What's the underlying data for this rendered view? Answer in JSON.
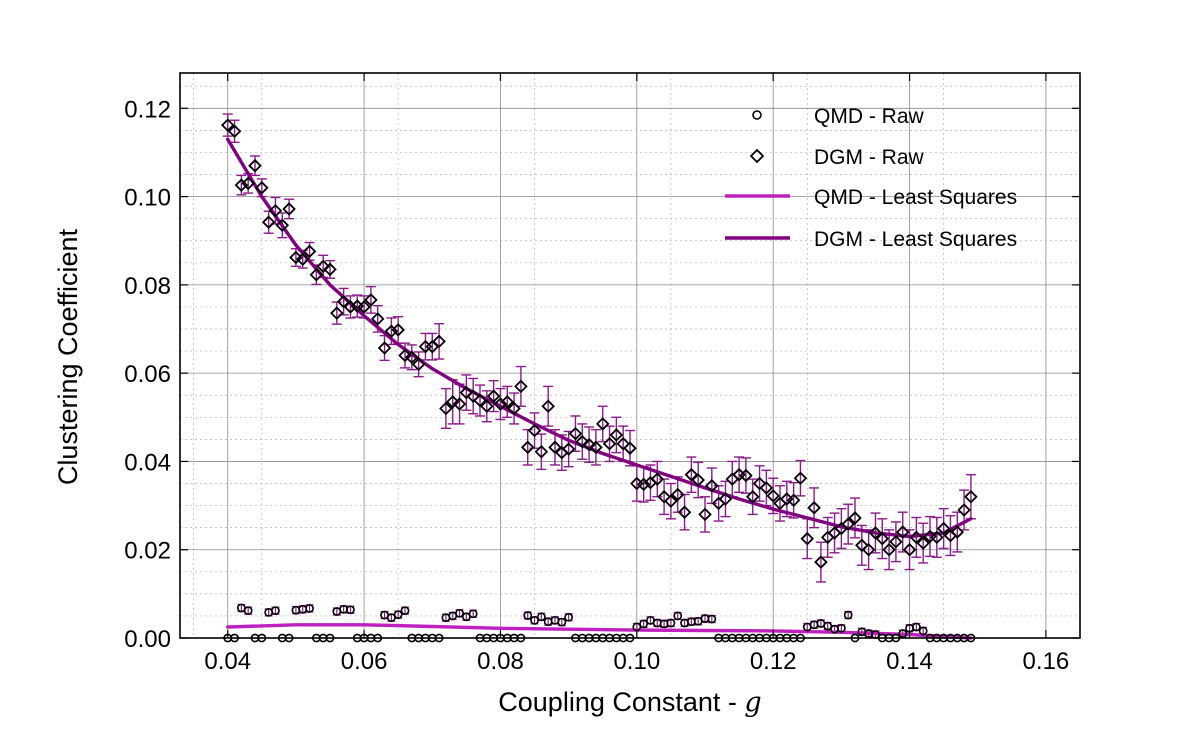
{
  "chart_data": {
    "type": "scatter",
    "title": "",
    "xlabel": "Coupling Constant - ",
    "xlabel_var": "g",
    "ylabel": "Clustering Coefficient",
    "xlim": [
      0.033,
      0.165
    ],
    "ylim": [
      0.0,
      0.128
    ],
    "xticks": [
      "0.04",
      "0.06",
      "0.08",
      "0.10",
      "0.12",
      "0.14",
      "0.16"
    ],
    "yticks": [
      "0.00",
      "0.02",
      "0.04",
      "0.06",
      "0.08",
      "0.10",
      "0.12"
    ],
    "xtick_values": [
      0.04,
      0.06,
      0.08,
      0.1,
      0.12,
      0.14,
      0.16
    ],
    "ytick_values": [
      0.0,
      0.02,
      0.04,
      0.06,
      0.08,
      0.1,
      0.12
    ],
    "grid": true,
    "legend_position": "top-right",
    "colors": {
      "qmd_fit": "#bf20bf",
      "dgm_fit": "#800080",
      "marker": "#000000",
      "errorbar": "#8b1a8b"
    },
    "series": [
      {
        "name": "QMD - Raw",
        "kind": "scatter",
        "marker": "circle",
        "points": [
          [
            0.04,
            0.0
          ],
          [
            0.041,
            0.0
          ],
          [
            0.042,
            0.0068
          ],
          [
            0.043,
            0.0062
          ],
          [
            0.044,
            0.0
          ],
          [
            0.045,
            0.0
          ],
          [
            0.046,
            0.0058
          ],
          [
            0.047,
            0.0062
          ],
          [
            0.048,
            0.0
          ],
          [
            0.049,
            0.0
          ],
          [
            0.05,
            0.0063
          ],
          [
            0.051,
            0.0065
          ],
          [
            0.052,
            0.0067
          ],
          [
            0.053,
            0.0
          ],
          [
            0.054,
            0.0
          ],
          [
            0.055,
            0.0
          ],
          [
            0.056,
            0.006
          ],
          [
            0.057,
            0.0065
          ],
          [
            0.058,
            0.0064
          ],
          [
            0.059,
            0.0
          ],
          [
            0.06,
            0.0
          ],
          [
            0.061,
            0.0
          ],
          [
            0.062,
            0.0
          ],
          [
            0.063,
            0.0052
          ],
          [
            0.064,
            0.0046
          ],
          [
            0.065,
            0.0053
          ],
          [
            0.066,
            0.0062
          ],
          [
            0.067,
            0.0
          ],
          [
            0.068,
            0.0
          ],
          [
            0.069,
            0.0
          ],
          [
            0.07,
            0.0
          ],
          [
            0.071,
            0.0
          ],
          [
            0.072,
            0.0046
          ],
          [
            0.073,
            0.005
          ],
          [
            0.074,
            0.0056
          ],
          [
            0.075,
            0.0048
          ],
          [
            0.076,
            0.0055
          ],
          [
            0.077,
            0.0
          ],
          [
            0.078,
            0.0
          ],
          [
            0.079,
            0.0
          ],
          [
            0.08,
            0.0
          ],
          [
            0.081,
            0.0
          ],
          [
            0.082,
            0.0
          ],
          [
            0.083,
            0.0
          ],
          [
            0.084,
            0.0051
          ],
          [
            0.085,
            0.004
          ],
          [
            0.086,
            0.0048
          ],
          [
            0.087,
            0.0037
          ],
          [
            0.088,
            0.004
          ],
          [
            0.089,
            0.0036
          ],
          [
            0.09,
            0.0047
          ],
          [
            0.091,
            0.0
          ],
          [
            0.092,
            0.0
          ],
          [
            0.093,
            0.0
          ],
          [
            0.094,
            0.0
          ],
          [
            0.095,
            0.0
          ],
          [
            0.096,
            0.0
          ],
          [
            0.097,
            0.0
          ],
          [
            0.098,
            0.0
          ],
          [
            0.099,
            0.0
          ],
          [
            0.1,
            0.0025
          ],
          [
            0.101,
            0.0032
          ],
          [
            0.102,
            0.004
          ],
          [
            0.103,
            0.0034
          ],
          [
            0.104,
            0.0032
          ],
          [
            0.105,
            0.0034
          ],
          [
            0.106,
            0.005
          ],
          [
            0.107,
            0.0034
          ],
          [
            0.108,
            0.0037
          ],
          [
            0.109,
            0.0038
          ],
          [
            0.11,
            0.0044
          ],
          [
            0.111,
            0.0043
          ],
          [
            0.112,
            0.0
          ],
          [
            0.113,
            0.0
          ],
          [
            0.114,
            0.0
          ],
          [
            0.115,
            0.0
          ],
          [
            0.116,
            0.0
          ],
          [
            0.117,
            0.0
          ],
          [
            0.118,
            0.0
          ],
          [
            0.119,
            0.0
          ],
          [
            0.12,
            0.0
          ],
          [
            0.121,
            0.0
          ],
          [
            0.122,
            0.0
          ],
          [
            0.123,
            0.0
          ],
          [
            0.124,
            0.0
          ],
          [
            0.125,
            0.0025
          ],
          [
            0.126,
            0.003
          ],
          [
            0.127,
            0.0033
          ],
          [
            0.128,
            0.0027
          ],
          [
            0.129,
            0.002
          ],
          [
            0.13,
            0.0022
          ],
          [
            0.131,
            0.0052
          ],
          [
            0.132,
            0.0
          ],
          [
            0.133,
            0.0014
          ],
          [
            0.134,
            0.001
          ],
          [
            0.135,
            0.0008
          ],
          [
            0.136,
            0.0
          ],
          [
            0.137,
            0.0
          ],
          [
            0.138,
            0.0
          ],
          [
            0.139,
            0.001
          ],
          [
            0.14,
            0.0022
          ],
          [
            0.141,
            0.0025
          ],
          [
            0.142,
            0.0016
          ],
          [
            0.143,
            0.0
          ],
          [
            0.144,
            0.0
          ],
          [
            0.145,
            0.0
          ],
          [
            0.146,
            0.0
          ],
          [
            0.147,
            0.0
          ],
          [
            0.148,
            0.0
          ],
          [
            0.149,
            0.0
          ]
        ]
      },
      {
        "name": "DGM - Raw",
        "kind": "scatter",
        "marker": "diamond",
        "points": [
          [
            0.04,
            0.1162,
            0.0025
          ],
          [
            0.041,
            0.1148,
            0.0025
          ],
          [
            0.042,
            0.1026,
            0.0022
          ],
          [
            0.043,
            0.103,
            0.0022
          ],
          [
            0.044,
            0.107,
            0.0022
          ],
          [
            0.045,
            0.102,
            0.002
          ],
          [
            0.046,
            0.0942,
            0.0025
          ],
          [
            0.047,
            0.0968,
            0.003
          ],
          [
            0.048,
            0.0935,
            0.0028
          ],
          [
            0.049,
            0.0972,
            0.0022
          ],
          [
            0.05,
            0.0862,
            0.002
          ],
          [
            0.051,
            0.0858,
            0.002
          ],
          [
            0.052,
            0.0876,
            0.002
          ],
          [
            0.053,
            0.0823,
            0.0022
          ],
          [
            0.054,
            0.0842,
            0.0025
          ],
          [
            0.055,
            0.0835,
            0.002
          ],
          [
            0.056,
            0.0736,
            0.0025
          ],
          [
            0.057,
            0.0762,
            0.003
          ],
          [
            0.058,
            0.075,
            0.0025
          ],
          [
            0.059,
            0.0752,
            0.0025
          ],
          [
            0.06,
            0.075,
            0.0025
          ],
          [
            0.061,
            0.0766,
            0.003
          ],
          [
            0.062,
            0.0723,
            0.003
          ],
          [
            0.063,
            0.0657,
            0.0028
          ],
          [
            0.064,
            0.0695,
            0.003
          ],
          [
            0.065,
            0.0698,
            0.003
          ],
          [
            0.066,
            0.064,
            0.0028
          ],
          [
            0.067,
            0.0636,
            0.0028
          ],
          [
            0.068,
            0.062,
            0.0028
          ],
          [
            0.069,
            0.066,
            0.003
          ],
          [
            0.07,
            0.066,
            0.003
          ],
          [
            0.071,
            0.0672,
            0.004
          ],
          [
            0.072,
            0.052,
            0.0045
          ],
          [
            0.073,
            0.0535,
            0.005
          ],
          [
            0.074,
            0.053,
            0.0045
          ],
          [
            0.075,
            0.0556,
            0.004
          ],
          [
            0.076,
            0.0548,
            0.004
          ],
          [
            0.077,
            0.0538,
            0.0035
          ],
          [
            0.078,
            0.0525,
            0.0035
          ],
          [
            0.079,
            0.0548,
            0.0035
          ],
          [
            0.08,
            0.053,
            0.0035
          ],
          [
            0.081,
            0.0535,
            0.0035
          ],
          [
            0.082,
            0.052,
            0.0035
          ],
          [
            0.083,
            0.057,
            0.0045
          ],
          [
            0.084,
            0.0432,
            0.004
          ],
          [
            0.085,
            0.047,
            0.004
          ],
          [
            0.086,
            0.0422,
            0.004
          ],
          [
            0.087,
            0.0525,
            0.0045
          ],
          [
            0.088,
            0.0432,
            0.004
          ],
          [
            0.089,
            0.042,
            0.004
          ],
          [
            0.09,
            0.0428,
            0.004
          ],
          [
            0.091,
            0.0463,
            0.004
          ],
          [
            0.092,
            0.0445,
            0.004
          ],
          [
            0.093,
            0.0438,
            0.004
          ],
          [
            0.094,
            0.0432,
            0.004
          ],
          [
            0.095,
            0.0485,
            0.004
          ],
          [
            0.096,
            0.044,
            0.004
          ],
          [
            0.097,
            0.046,
            0.004
          ],
          [
            0.098,
            0.044,
            0.004
          ],
          [
            0.099,
            0.043,
            0.004
          ],
          [
            0.1,
            0.035,
            0.004
          ],
          [
            0.101,
            0.0348,
            0.004
          ],
          [
            0.102,
            0.0352,
            0.004
          ],
          [
            0.103,
            0.036,
            0.004
          ],
          [
            0.104,
            0.032,
            0.004
          ],
          [
            0.105,
            0.031,
            0.004
          ],
          [
            0.106,
            0.0325,
            0.004
          ],
          [
            0.107,
            0.0285,
            0.004
          ],
          [
            0.108,
            0.037,
            0.004
          ],
          [
            0.109,
            0.0358,
            0.004
          ],
          [
            0.11,
            0.028,
            0.004
          ],
          [
            0.111,
            0.0345,
            0.004
          ],
          [
            0.112,
            0.0305,
            0.004
          ],
          [
            0.113,
            0.0315,
            0.004
          ],
          [
            0.114,
            0.036,
            0.004
          ],
          [
            0.115,
            0.037,
            0.004
          ],
          [
            0.116,
            0.0368,
            0.004
          ],
          [
            0.117,
            0.032,
            0.004
          ],
          [
            0.118,
            0.035,
            0.004
          ],
          [
            0.119,
            0.034,
            0.004
          ],
          [
            0.12,
            0.0322,
            0.004
          ],
          [
            0.121,
            0.0305,
            0.004
          ],
          [
            0.122,
            0.0315,
            0.004
          ],
          [
            0.123,
            0.0312,
            0.004
          ],
          [
            0.124,
            0.0362,
            0.004
          ],
          [
            0.125,
            0.0225,
            0.0045
          ],
          [
            0.126,
            0.0295,
            0.0045
          ],
          [
            0.127,
            0.0172,
            0.0045
          ],
          [
            0.128,
            0.0228,
            0.0045
          ],
          [
            0.129,
            0.0238,
            0.0045
          ],
          [
            0.13,
            0.0248,
            0.0045
          ],
          [
            0.131,
            0.0258,
            0.0045
          ],
          [
            0.132,
            0.0272,
            0.0045
          ],
          [
            0.133,
            0.021,
            0.0045
          ],
          [
            0.134,
            0.02,
            0.0045
          ],
          [
            0.135,
            0.0238,
            0.0045
          ],
          [
            0.136,
            0.0225,
            0.0045
          ],
          [
            0.137,
            0.02,
            0.0045
          ],
          [
            0.138,
            0.0218,
            0.0045
          ],
          [
            0.139,
            0.024,
            0.0045
          ],
          [
            0.14,
            0.02,
            0.0045
          ],
          [
            0.141,
            0.0228,
            0.0045
          ],
          [
            0.142,
            0.0215,
            0.0045
          ],
          [
            0.143,
            0.023,
            0.0045
          ],
          [
            0.144,
            0.0228,
            0.0045
          ],
          [
            0.145,
            0.0248,
            0.0045
          ],
          [
            0.146,
            0.0232,
            0.0045
          ],
          [
            0.147,
            0.024,
            0.0045
          ],
          [
            0.148,
            0.029,
            0.0045
          ],
          [
            0.149,
            0.032,
            0.005
          ]
        ]
      },
      {
        "name": "QMD - Least Squares",
        "kind": "line",
        "points": [
          [
            0.04,
            0.0025
          ],
          [
            0.05,
            0.003
          ],
          [
            0.06,
            0.003
          ],
          [
            0.07,
            0.0026
          ],
          [
            0.08,
            0.0022
          ],
          [
            0.09,
            0.002
          ],
          [
            0.1,
            0.0018
          ],
          [
            0.11,
            0.0017
          ],
          [
            0.12,
            0.0016
          ],
          [
            0.13,
            0.0013
          ],
          [
            0.14,
            0.0008
          ],
          [
            0.149,
            0.0
          ]
        ]
      },
      {
        "name": "DGM - Least Squares",
        "kind": "line",
        "points": [
          [
            0.04,
            0.113
          ],
          [
            0.045,
            0.1
          ],
          [
            0.05,
            0.089
          ],
          [
            0.055,
            0.08
          ],
          [
            0.06,
            0.073
          ],
          [
            0.065,
            0.0665
          ],
          [
            0.07,
            0.061
          ],
          [
            0.075,
            0.0565
          ],
          [
            0.08,
            0.0525
          ],
          [
            0.085,
            0.0485
          ],
          [
            0.09,
            0.0448
          ],
          [
            0.095,
            0.0418
          ],
          [
            0.1,
            0.0392
          ],
          [
            0.105,
            0.0366
          ],
          [
            0.11,
            0.034
          ],
          [
            0.115,
            0.0315
          ],
          [
            0.12,
            0.0292
          ],
          [
            0.125,
            0.0272
          ],
          [
            0.13,
            0.0252
          ],
          [
            0.135,
            0.0238
          ],
          [
            0.14,
            0.023
          ],
          [
            0.145,
            0.0238
          ],
          [
            0.149,
            0.027
          ]
        ]
      }
    ]
  }
}
